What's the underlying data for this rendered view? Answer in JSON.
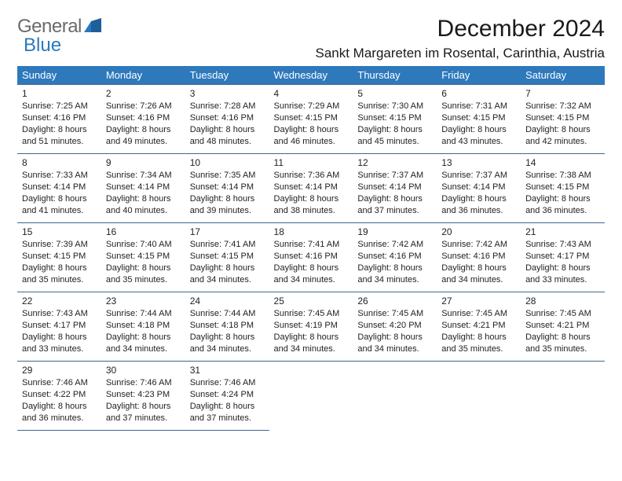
{
  "logo": {
    "text1": "General",
    "text2": "Blue"
  },
  "title": "December 2024",
  "location": "Sankt Margareten im Rosental, Carinthia, Austria",
  "colors": {
    "header_bg": "#2e79bc",
    "header_text": "#ffffff",
    "cell_border": "#3a6a95",
    "logo_gray": "#6a6a6a",
    "logo_blue": "#2b78bd",
    "text": "#1a1a1a",
    "background": "#ffffff"
  },
  "weekdays": [
    "Sunday",
    "Monday",
    "Tuesday",
    "Wednesday",
    "Thursday",
    "Friday",
    "Saturday"
  ],
  "weeks": [
    [
      {
        "day": "1",
        "sunrise": "Sunrise: 7:25 AM",
        "sunset": "Sunset: 4:16 PM",
        "daylight": "Daylight: 8 hours and 51 minutes."
      },
      {
        "day": "2",
        "sunrise": "Sunrise: 7:26 AM",
        "sunset": "Sunset: 4:16 PM",
        "daylight": "Daylight: 8 hours and 49 minutes."
      },
      {
        "day": "3",
        "sunrise": "Sunrise: 7:28 AM",
        "sunset": "Sunset: 4:16 PM",
        "daylight": "Daylight: 8 hours and 48 minutes."
      },
      {
        "day": "4",
        "sunrise": "Sunrise: 7:29 AM",
        "sunset": "Sunset: 4:15 PM",
        "daylight": "Daylight: 8 hours and 46 minutes."
      },
      {
        "day": "5",
        "sunrise": "Sunrise: 7:30 AM",
        "sunset": "Sunset: 4:15 PM",
        "daylight": "Daylight: 8 hours and 45 minutes."
      },
      {
        "day": "6",
        "sunrise": "Sunrise: 7:31 AM",
        "sunset": "Sunset: 4:15 PM",
        "daylight": "Daylight: 8 hours and 43 minutes."
      },
      {
        "day": "7",
        "sunrise": "Sunrise: 7:32 AM",
        "sunset": "Sunset: 4:15 PM",
        "daylight": "Daylight: 8 hours and 42 minutes."
      }
    ],
    [
      {
        "day": "8",
        "sunrise": "Sunrise: 7:33 AM",
        "sunset": "Sunset: 4:14 PM",
        "daylight": "Daylight: 8 hours and 41 minutes."
      },
      {
        "day": "9",
        "sunrise": "Sunrise: 7:34 AM",
        "sunset": "Sunset: 4:14 PM",
        "daylight": "Daylight: 8 hours and 40 minutes."
      },
      {
        "day": "10",
        "sunrise": "Sunrise: 7:35 AM",
        "sunset": "Sunset: 4:14 PM",
        "daylight": "Daylight: 8 hours and 39 minutes."
      },
      {
        "day": "11",
        "sunrise": "Sunrise: 7:36 AM",
        "sunset": "Sunset: 4:14 PM",
        "daylight": "Daylight: 8 hours and 38 minutes."
      },
      {
        "day": "12",
        "sunrise": "Sunrise: 7:37 AM",
        "sunset": "Sunset: 4:14 PM",
        "daylight": "Daylight: 8 hours and 37 minutes."
      },
      {
        "day": "13",
        "sunrise": "Sunrise: 7:37 AM",
        "sunset": "Sunset: 4:14 PM",
        "daylight": "Daylight: 8 hours and 36 minutes."
      },
      {
        "day": "14",
        "sunrise": "Sunrise: 7:38 AM",
        "sunset": "Sunset: 4:15 PM",
        "daylight": "Daylight: 8 hours and 36 minutes."
      }
    ],
    [
      {
        "day": "15",
        "sunrise": "Sunrise: 7:39 AM",
        "sunset": "Sunset: 4:15 PM",
        "daylight": "Daylight: 8 hours and 35 minutes."
      },
      {
        "day": "16",
        "sunrise": "Sunrise: 7:40 AM",
        "sunset": "Sunset: 4:15 PM",
        "daylight": "Daylight: 8 hours and 35 minutes."
      },
      {
        "day": "17",
        "sunrise": "Sunrise: 7:41 AM",
        "sunset": "Sunset: 4:15 PM",
        "daylight": "Daylight: 8 hours and 34 minutes."
      },
      {
        "day": "18",
        "sunrise": "Sunrise: 7:41 AM",
        "sunset": "Sunset: 4:16 PM",
        "daylight": "Daylight: 8 hours and 34 minutes."
      },
      {
        "day": "19",
        "sunrise": "Sunrise: 7:42 AM",
        "sunset": "Sunset: 4:16 PM",
        "daylight": "Daylight: 8 hours and 34 minutes."
      },
      {
        "day": "20",
        "sunrise": "Sunrise: 7:42 AM",
        "sunset": "Sunset: 4:16 PM",
        "daylight": "Daylight: 8 hours and 34 minutes."
      },
      {
        "day": "21",
        "sunrise": "Sunrise: 7:43 AM",
        "sunset": "Sunset: 4:17 PM",
        "daylight": "Daylight: 8 hours and 33 minutes."
      }
    ],
    [
      {
        "day": "22",
        "sunrise": "Sunrise: 7:43 AM",
        "sunset": "Sunset: 4:17 PM",
        "daylight": "Daylight: 8 hours and 33 minutes."
      },
      {
        "day": "23",
        "sunrise": "Sunrise: 7:44 AM",
        "sunset": "Sunset: 4:18 PM",
        "daylight": "Daylight: 8 hours and 34 minutes."
      },
      {
        "day": "24",
        "sunrise": "Sunrise: 7:44 AM",
        "sunset": "Sunset: 4:18 PM",
        "daylight": "Daylight: 8 hours and 34 minutes."
      },
      {
        "day": "25",
        "sunrise": "Sunrise: 7:45 AM",
        "sunset": "Sunset: 4:19 PM",
        "daylight": "Daylight: 8 hours and 34 minutes."
      },
      {
        "day": "26",
        "sunrise": "Sunrise: 7:45 AM",
        "sunset": "Sunset: 4:20 PM",
        "daylight": "Daylight: 8 hours and 34 minutes."
      },
      {
        "day": "27",
        "sunrise": "Sunrise: 7:45 AM",
        "sunset": "Sunset: 4:21 PM",
        "daylight": "Daylight: 8 hours and 35 minutes."
      },
      {
        "day": "28",
        "sunrise": "Sunrise: 7:45 AM",
        "sunset": "Sunset: 4:21 PM",
        "daylight": "Daylight: 8 hours and 35 minutes."
      }
    ],
    [
      {
        "day": "29",
        "sunrise": "Sunrise: 7:46 AM",
        "sunset": "Sunset: 4:22 PM",
        "daylight": "Daylight: 8 hours and 36 minutes."
      },
      {
        "day": "30",
        "sunrise": "Sunrise: 7:46 AM",
        "sunset": "Sunset: 4:23 PM",
        "daylight": "Daylight: 8 hours and 37 minutes."
      },
      {
        "day": "31",
        "sunrise": "Sunrise: 7:46 AM",
        "sunset": "Sunset: 4:24 PM",
        "daylight": "Daylight: 8 hours and 37 minutes."
      },
      null,
      null,
      null,
      null
    ]
  ]
}
